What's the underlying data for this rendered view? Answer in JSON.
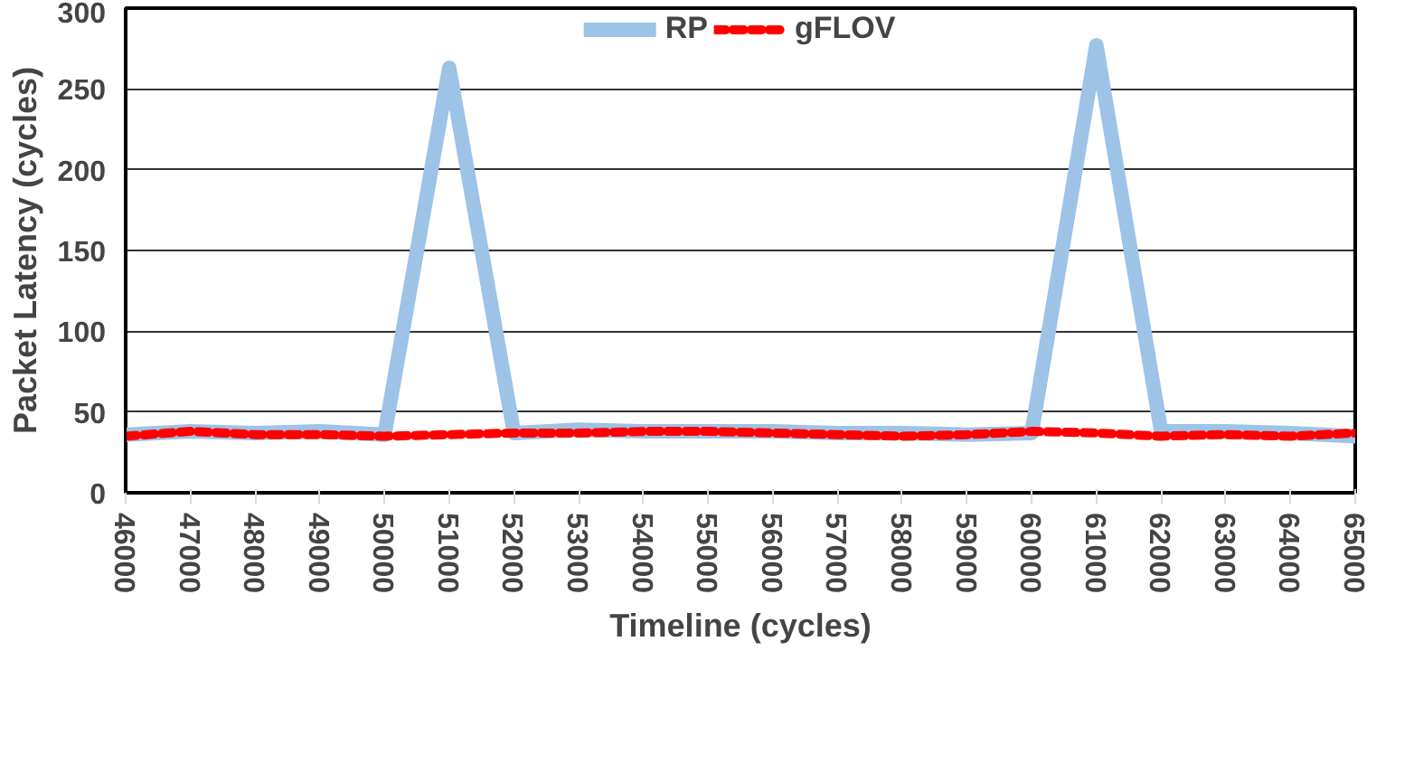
{
  "chart_data": {
    "type": "line",
    "xlabel": "Timeline (cycles)",
    "ylabel": "Packet Latency (cycles)",
    "x": [
      46000,
      47000,
      48000,
      49000,
      50000,
      51000,
      52000,
      53000,
      54000,
      55000,
      56000,
      57000,
      58000,
      59000,
      60000,
      61000,
      62000,
      63000,
      64000,
      65000
    ],
    "series": [
      {
        "name": "RP",
        "color": "#9dc3e6",
        "line_style": "solid",
        "values": [
          36,
          38,
          37,
          38,
          36,
          263,
          37,
          39,
          38,
          38,
          38,
          37,
          37,
          36,
          37,
          277,
          38,
          38,
          37,
          35
        ]
      },
      {
        "name": "gFLOV",
        "color": "#ff0000",
        "line_style": "dashed",
        "values": [
          35,
          38,
          36,
          36,
          35,
          36,
          37,
          37,
          38,
          38,
          37,
          36,
          35,
          36,
          38,
          37,
          35,
          36,
          35,
          37
        ]
      }
    ],
    "xlim": [
      46000,
      65000
    ],
    "xticks": [
      46000,
      47000,
      48000,
      49000,
      50000,
      51000,
      52000,
      53000,
      54000,
      55000,
      56000,
      57000,
      58000,
      59000,
      60000,
      61000,
      62000,
      63000,
      64000,
      65000
    ],
    "ylim": [
      0,
      300
    ],
    "yticks": [
      0,
      50,
      100,
      150,
      200,
      250,
      300
    ],
    "grid": "y",
    "legend": "top",
    "marker": "none"
  }
}
